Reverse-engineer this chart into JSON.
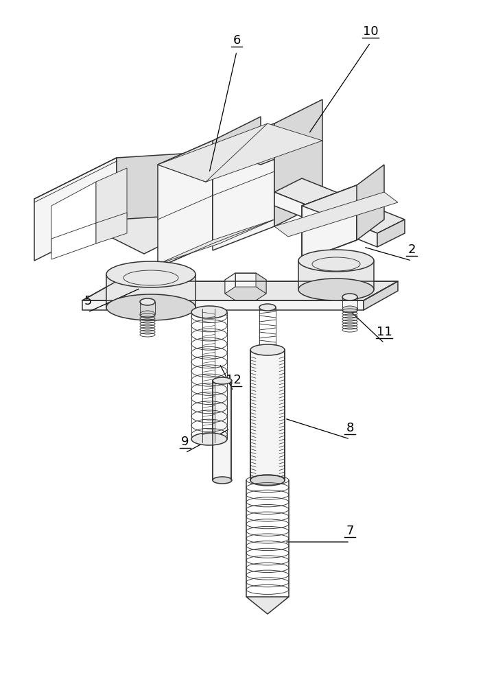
{
  "fig_width": 7.07,
  "fig_height": 10.0,
  "dpi": 100,
  "bg_color": "#ffffff",
  "line_color": "#333333",
  "lw": 1.1,
  "tlw": 0.65,
  "label_fontsize": 13,
  "label_color": "#000000",
  "face_light": "#f5f5f5",
  "face_mid": "#e8e8e8",
  "face_dark": "#d8d8d8",
  "face_white": "#ffffff"
}
